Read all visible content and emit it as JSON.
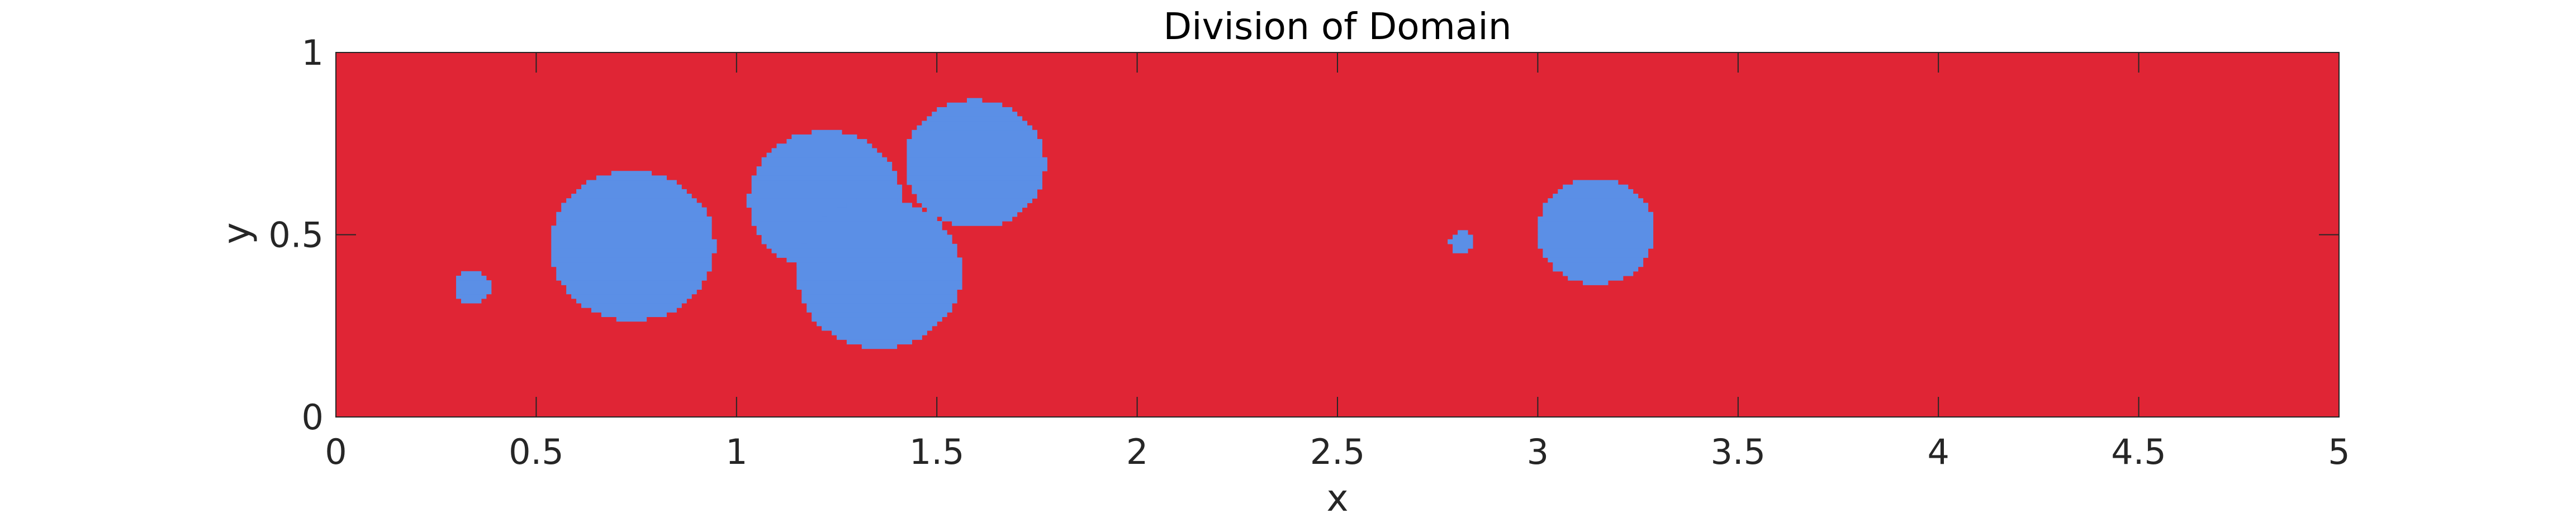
{
  "chart_data": {
    "type": "heatmap",
    "title": "Division of Domain",
    "xlabel": "x",
    "ylabel": "y",
    "xlim": [
      0,
      5
    ],
    "ylim": [
      0,
      1
    ],
    "x_ticks": [
      0,
      0.5,
      1,
      1.5,
      2,
      2.5,
      3,
      3.5,
      4,
      4.5,
      5
    ],
    "x_tick_labels": [
      "0",
      "0.5",
      "1",
      "1.5",
      "2",
      "2.5",
      "3",
      "3.5",
      "4",
      "4.5",
      "5"
    ],
    "y_ticks": [
      0,
      0.5,
      1
    ],
    "y_tick_labels": [
      "0",
      "0.5",
      "1"
    ],
    "grid": false,
    "grid_resolution": 0.0125,
    "background_region": {
      "color": "#E02535"
    },
    "regions": [
      {
        "shape": "circle",
        "cx": 0.34,
        "cy": 0.355,
        "r": 0.045,
        "color": "#5B8FE6"
      },
      {
        "shape": "circle",
        "cx": 0.74,
        "cy": 0.47,
        "r": 0.205,
        "color": "#5B8FE6"
      },
      {
        "shape": "circle",
        "cx": 1.22,
        "cy": 0.595,
        "r": 0.19,
        "color": "#5B8FE6"
      },
      {
        "shape": "circle",
        "cx": 1.355,
        "cy": 0.395,
        "r": 0.205,
        "color": "#5B8FE6"
      },
      {
        "shape": "circle",
        "cx": 1.595,
        "cy": 0.695,
        "r": 0.175,
        "color": "#5B8FE6"
      },
      {
        "shape": "circle",
        "cx": 2.81,
        "cy": 0.48,
        "r": 0.03,
        "color": "#5B8FE6"
      },
      {
        "shape": "circle",
        "cx": 3.145,
        "cy": 0.51,
        "r": 0.145,
        "color": "#5B8FE6"
      }
    ]
  }
}
